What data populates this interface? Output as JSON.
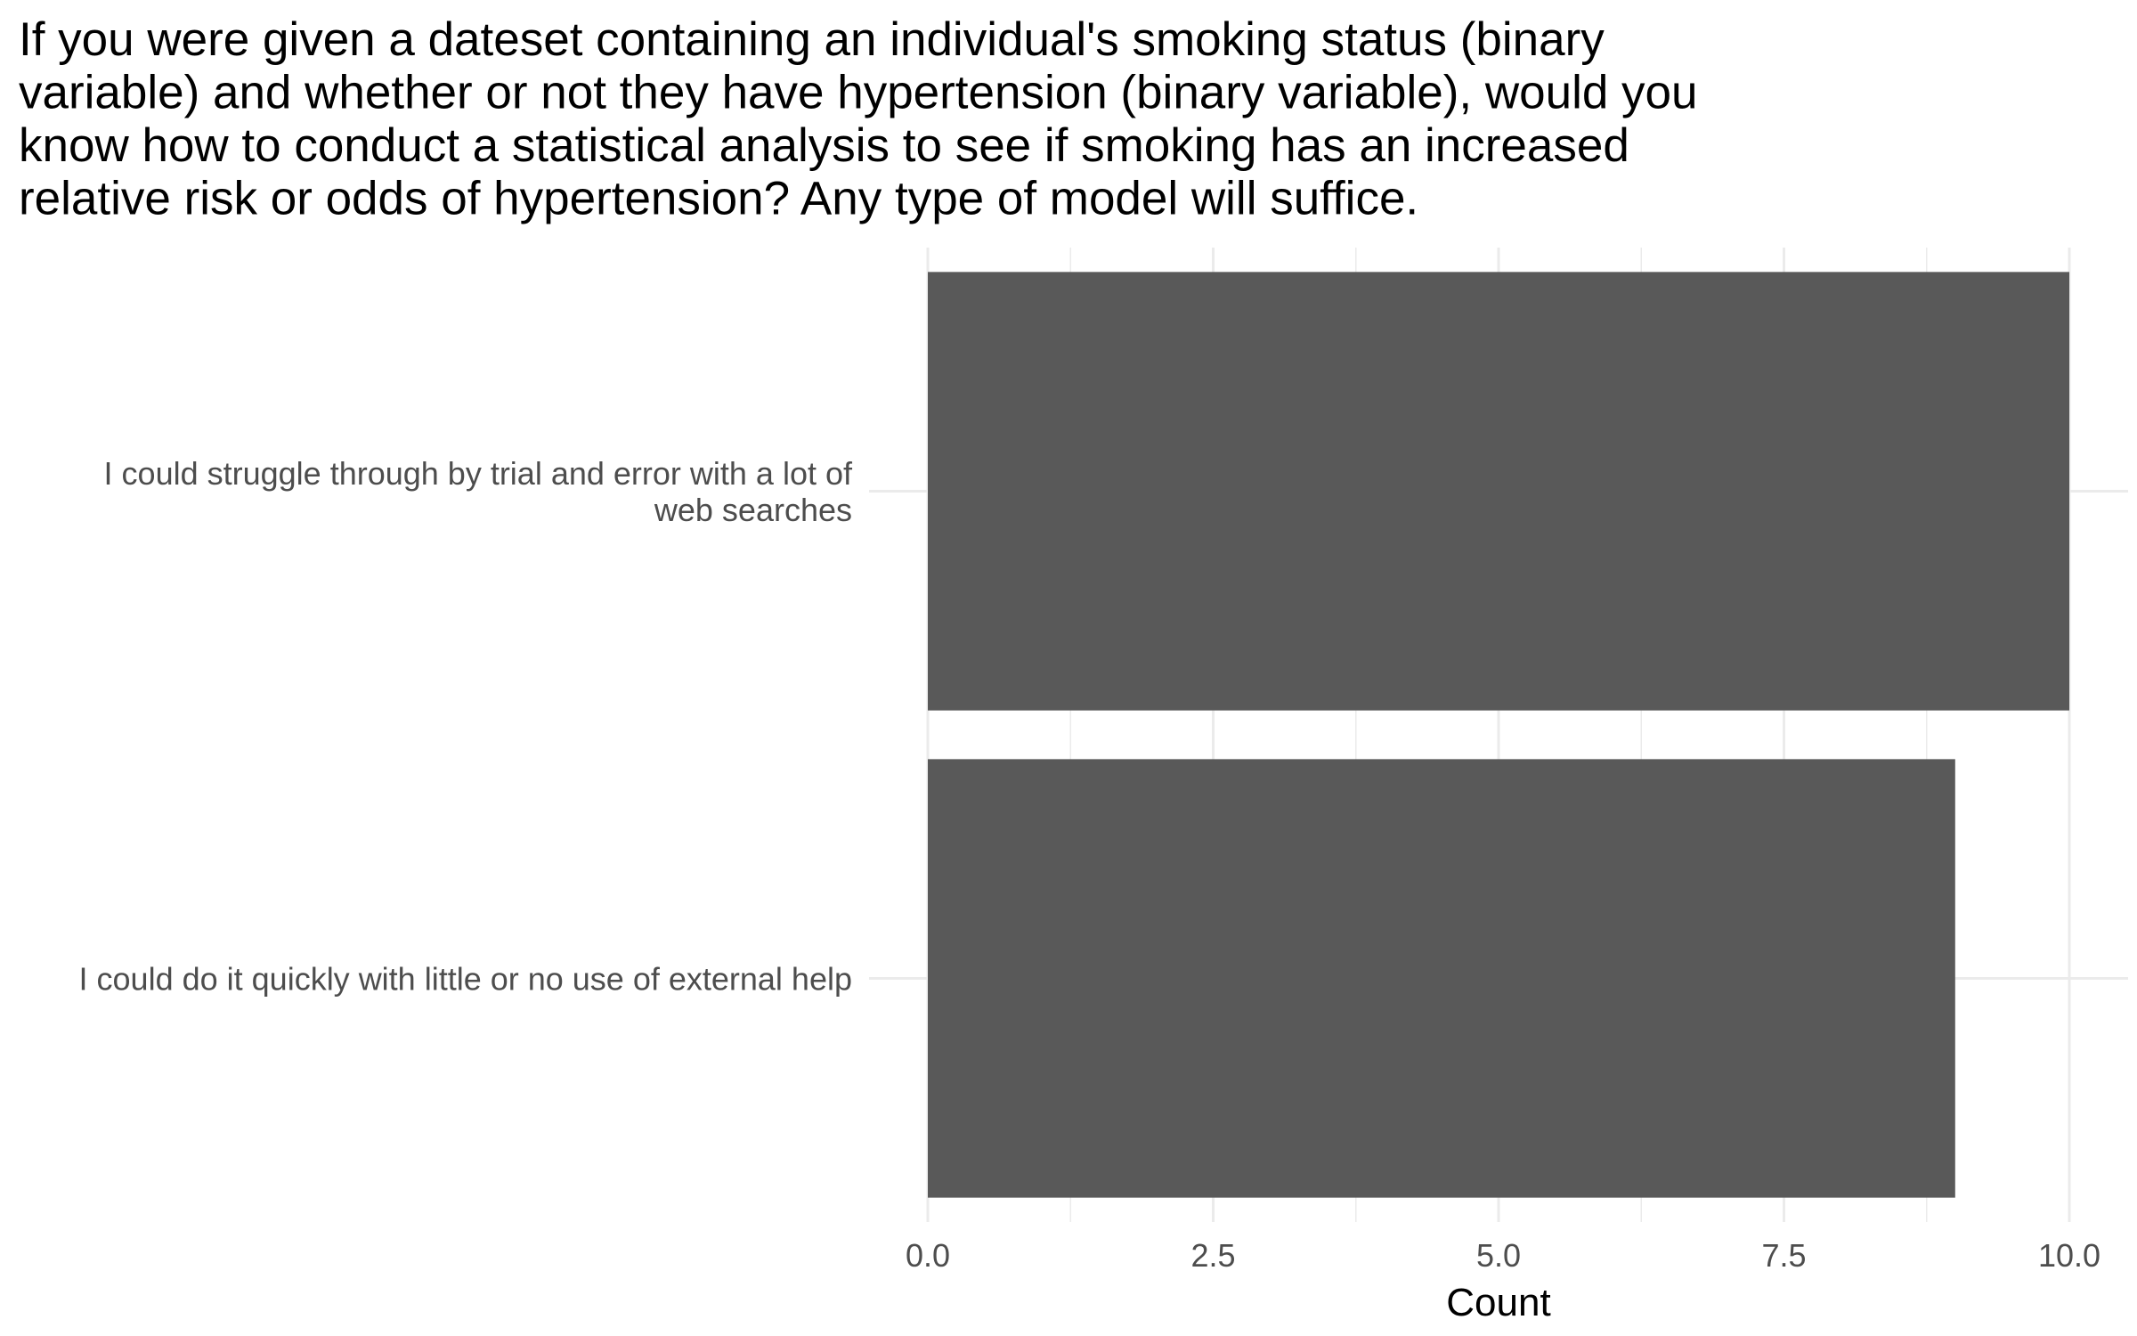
{
  "chart_data": {
    "type": "bar",
    "orientation": "horizontal",
    "title": "If you were given a dateset containing an individual's smoking status (binary variable) and whether or not they have hypertension (binary variable), would you know how to conduct a statistical analysis to see if smoking has an increased relative risk or odds of hypertension? Any type of model will suffice.",
    "title_lines": [
      "If you were given a dateset containing an individual's smoking status (binary",
      "variable) and whether or not they have hypertension (binary variable), would you",
      "know how to conduct a statistical analysis to see if smoking has an increased",
      "relative risk or odds of hypertension? Any type of model will suffice."
    ],
    "categories": [
      "I could struggle through by trial and error with a lot of web searches",
      "I could do it quickly with little or no use of external help"
    ],
    "category_label_lines": [
      [
        "I could struggle through by trial and error with a lot of",
        "web searches"
      ],
      [
        "I could do it quickly with little or no use of external help"
      ]
    ],
    "values": [
      10,
      9
    ],
    "xlabel": "Count",
    "ylabel": "",
    "xlim": [
      0,
      10
    ],
    "xticks": [
      "0.0",
      "2.5",
      "5.0",
      "7.5",
      "10.0"
    ],
    "bar_color": "#595959",
    "grid_color": "#ebebeb",
    "grid": true,
    "legend": "none"
  }
}
